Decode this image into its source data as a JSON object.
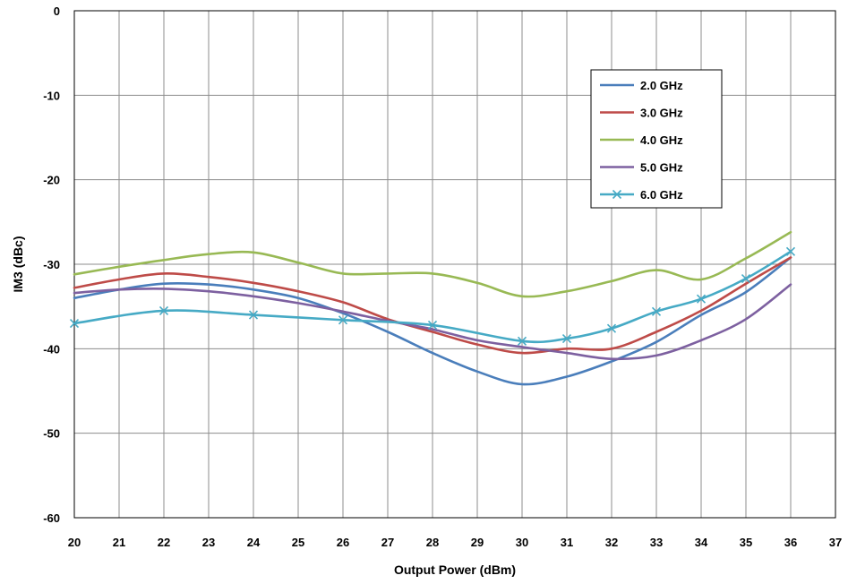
{
  "chart_data": {
    "type": "line",
    "xlabel": "Output Power (dBm)",
    "ylabel": "IM3 (dBc)",
    "xlim": [
      20,
      37
    ],
    "ylim": [
      -60,
      0
    ],
    "xticks": [
      20,
      21,
      22,
      23,
      24,
      25,
      26,
      27,
      28,
      29,
      30,
      31,
      32,
      33,
      34,
      35,
      36,
      37
    ],
    "yticks": [
      0,
      -10,
      -20,
      -30,
      -40,
      -50,
      -60
    ],
    "grid": true,
    "legend_position": "upper-right",
    "series": [
      {
        "name": "2.0 GHz",
        "color": "#4a7ebb",
        "marker": "none",
        "x": [
          20,
          21,
          22,
          23,
          24,
          25,
          26,
          27,
          28,
          29,
          30,
          31,
          32,
          33,
          34,
          35,
          36
        ],
        "y": [
          -34.0,
          -33.0,
          -32.3,
          -32.4,
          -33.0,
          -34.0,
          -35.8,
          -38.0,
          -40.5,
          -42.7,
          -44.2,
          -43.3,
          -41.5,
          -39.2,
          -36.0,
          -33.3,
          -29.2
        ]
      },
      {
        "name": "3.0 GHz",
        "color": "#be4b48",
        "marker": "none",
        "x": [
          20,
          21,
          22,
          23,
          24,
          25,
          26,
          27,
          28,
          29,
          30,
          31,
          32,
          33,
          34,
          35,
          36
        ],
        "y": [
          -32.8,
          -31.8,
          -31.1,
          -31.5,
          -32.2,
          -33.2,
          -34.5,
          -36.5,
          -38.0,
          -39.5,
          -40.5,
          -40.0,
          -40.0,
          -38.0,
          -35.5,
          -32.3,
          -29.2
        ]
      },
      {
        "name": "4.0 GHz",
        "color": "#98b954",
        "marker": "none",
        "x": [
          20,
          21,
          22,
          23,
          24,
          25,
          26,
          27,
          28,
          29,
          30,
          31,
          32,
          33,
          34,
          35,
          36
        ],
        "y": [
          -31.2,
          -30.3,
          -29.5,
          -28.8,
          -28.6,
          -29.8,
          -31.1,
          -31.1,
          -31.1,
          -32.2,
          -33.8,
          -33.2,
          -32.0,
          -30.7,
          -31.8,
          -29.3,
          -26.2
        ]
      },
      {
        "name": "5.0 GHz",
        "color": "#7d60a0",
        "marker": "none",
        "x": [
          20,
          21,
          22,
          23,
          24,
          25,
          26,
          27,
          28,
          29,
          30,
          31,
          32,
          33,
          34,
          35,
          36
        ],
        "y": [
          -33.4,
          -33.0,
          -32.9,
          -33.2,
          -33.8,
          -34.6,
          -35.6,
          -36.7,
          -37.7,
          -39.0,
          -39.8,
          -40.5,
          -41.2,
          -40.8,
          -39.0,
          -36.5,
          -32.4
        ]
      },
      {
        "name": "6.0 GHz",
        "color": "#46aac5",
        "marker": "x",
        "x": [
          20,
          22,
          24,
          26,
          28,
          30,
          31,
          32,
          33,
          34,
          35,
          36
        ],
        "y": [
          -37.0,
          -35.5,
          -36.0,
          -36.6,
          -37.2,
          -39.1,
          -38.8,
          -37.6,
          -35.6,
          -34.1,
          -31.7,
          -28.5
        ]
      }
    ]
  }
}
